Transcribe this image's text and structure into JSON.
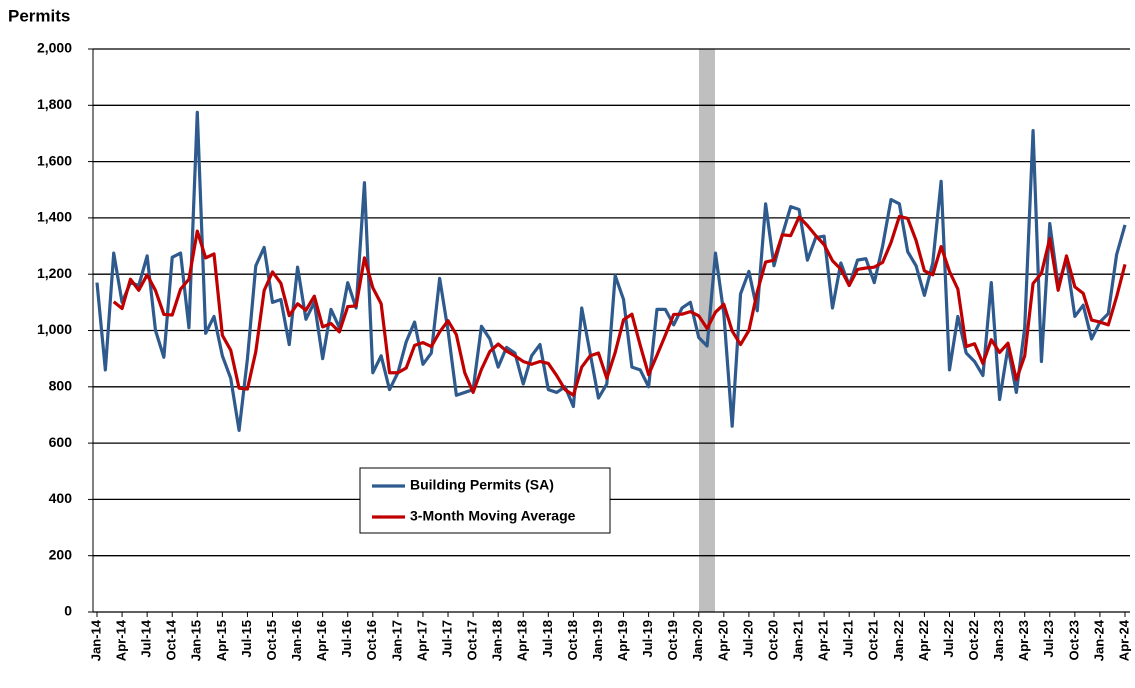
{
  "chart_data": {
    "type": "line",
    "y_axis_title": "Permits",
    "categories": [
      "Jan-14",
      null,
      null,
      "Apr-14",
      null,
      null,
      "Jul-14",
      null,
      null,
      "Oct-14",
      null,
      null,
      "Jan-15",
      null,
      null,
      "Apr-15",
      null,
      null,
      "Jul-15",
      null,
      null,
      "Oct-15",
      null,
      null,
      "Jan-16",
      null,
      null,
      "Apr-16",
      null,
      null,
      "Jul-16",
      null,
      null,
      "Oct-16",
      null,
      null,
      "Jan-17",
      null,
      null,
      "Apr-17",
      null,
      null,
      "Jul-17",
      null,
      null,
      "Oct-17",
      null,
      null,
      "Jan-18",
      null,
      null,
      "Apr-18",
      null,
      null,
      "Jul-18",
      null,
      null,
      "Oct-18",
      null,
      null,
      "Jan-19",
      null,
      null,
      "Apr-19",
      null,
      null,
      "Jul-19",
      null,
      null,
      "Oct-19",
      null,
      null,
      "Jan-20",
      null,
      null,
      "Apr-20",
      null,
      null,
      "Jul-20",
      null,
      null,
      "Oct-20",
      null,
      null,
      "Jan-21",
      null,
      null,
      "Apr-21",
      null,
      null,
      "Jul-21",
      null,
      null,
      "Oct-21",
      null,
      null,
      "Jan-22",
      null,
      null,
      "Apr-22",
      null,
      null,
      "Jul-22",
      null,
      null,
      "Oct-22",
      null,
      null,
      "Jan-23",
      null,
      null,
      "Apr-23",
      null,
      null,
      "Jul-23",
      null,
      null,
      "Oct-23",
      null,
      null,
      "Jan-24",
      null,
      null,
      "Apr-24"
    ],
    "series": [
      {
        "name": "Building Permits (SA)",
        "color": "#2e5a8e",
        "values": [
          1170,
          860,
          1275,
          1100,
          1170,
          1160,
          1265,
          1000,
          905,
          1260,
          1275,
          1010,
          1775,
          990,
          1050,
          910,
          830,
          645,
          900,
          1230,
          1295,
          1100,
          1110,
          950,
          1225,
          1040,
          1100,
          900,
          1075,
          1010,
          1170,
          1080,
          1525,
          850,
          910,
          790,
          850,
          960,
          1030,
          880,
          920,
          1185,
          1000,
          770,
          780,
          790,
          1015,
          970,
          870,
          940,
          920,
          810,
          910,
          950,
          790,
          780,
          800,
          730,
          1080,
          920,
          760,
          810,
          1195,
          1110,
          870,
          860,
          800,
          1075,
          1075,
          1020,
          1080,
          1100,
          975,
          945,
          1275,
          1060,
          660,
          1130,
          1210,
          1070,
          1450,
          1230,
          1340,
          1440,
          1430,
          1250,
          1330,
          1335,
          1080,
          1240,
          1160,
          1250,
          1255,
          1170,
          1300,
          1465,
          1450,
          1280,
          1230,
          1125,
          1240,
          1530,
          860,
          1050,
          920,
          890,
          840,
          1170,
          755,
          940,
          780,
          1010,
          1710,
          890,
          1380,
          1160,
          1255,
          1050,
          1090,
          970,
          1030,
          1060,
          1270,
          1375
        ]
      },
      {
        "name": "3-Month Moving Average",
        "color": "#c00000",
        "values": [
          null,
          null,
          1102,
          1078,
          1182,
          1143,
          1198,
          1142,
          1057,
          1055,
          1147,
          1182,
          1353,
          1258,
          1272,
          983,
          930,
          795,
          792,
          925,
          1142,
          1208,
          1168,
          1053,
          1095,
          1072,
          1122,
          1013,
          1025,
          995,
          1085,
          1087,
          1258,
          1152,
          1095,
          850,
          850,
          867,
          947,
          957,
          943,
          995,
          1035,
          985,
          850,
          780,
          862,
          925,
          952,
          927,
          910,
          890,
          880,
          890,
          883,
          840,
          790,
          770,
          870,
          910,
          920,
          830,
          922,
          1038,
          1058,
          947,
          843,
          912,
          983,
          1057,
          1058,
          1067,
          1052,
          1007,
          1065,
          1093,
          998,
          950,
          1000,
          1137,
          1243,
          1250,
          1340,
          1337,
          1403,
          1373,
          1337,
          1305,
          1248,
          1218,
          1160,
          1217,
          1222,
          1225,
          1242,
          1312,
          1405,
          1398,
          1320,
          1212,
          1198,
          1298,
          1210,
          1147,
          943,
          953,
          883,
          967,
          922,
          955,
          825,
          910,
          1167,
          1203,
          1327,
          1143,
          1265,
          1155,
          1132,
          1037,
          1030,
          1020,
          1120,
          1235
        ]
      }
    ],
    "ylim": [
      0,
      2000
    ],
    "yticks": [
      0,
      200,
      400,
      600,
      800,
      {
        "value": 1000,
        "label": "1,000"
      },
      {
        "value": 1200,
        "label": "1,200"
      },
      {
        "value": 1400,
        "label": "1,400"
      },
      {
        "value": 1600,
        "label": "1,600"
      },
      {
        "value": 1800,
        "label": "1,800"
      },
      {
        "value": 2000,
        "label": "2,000"
      }
    ],
    "grid": true,
    "legend": "lower center"
  }
}
